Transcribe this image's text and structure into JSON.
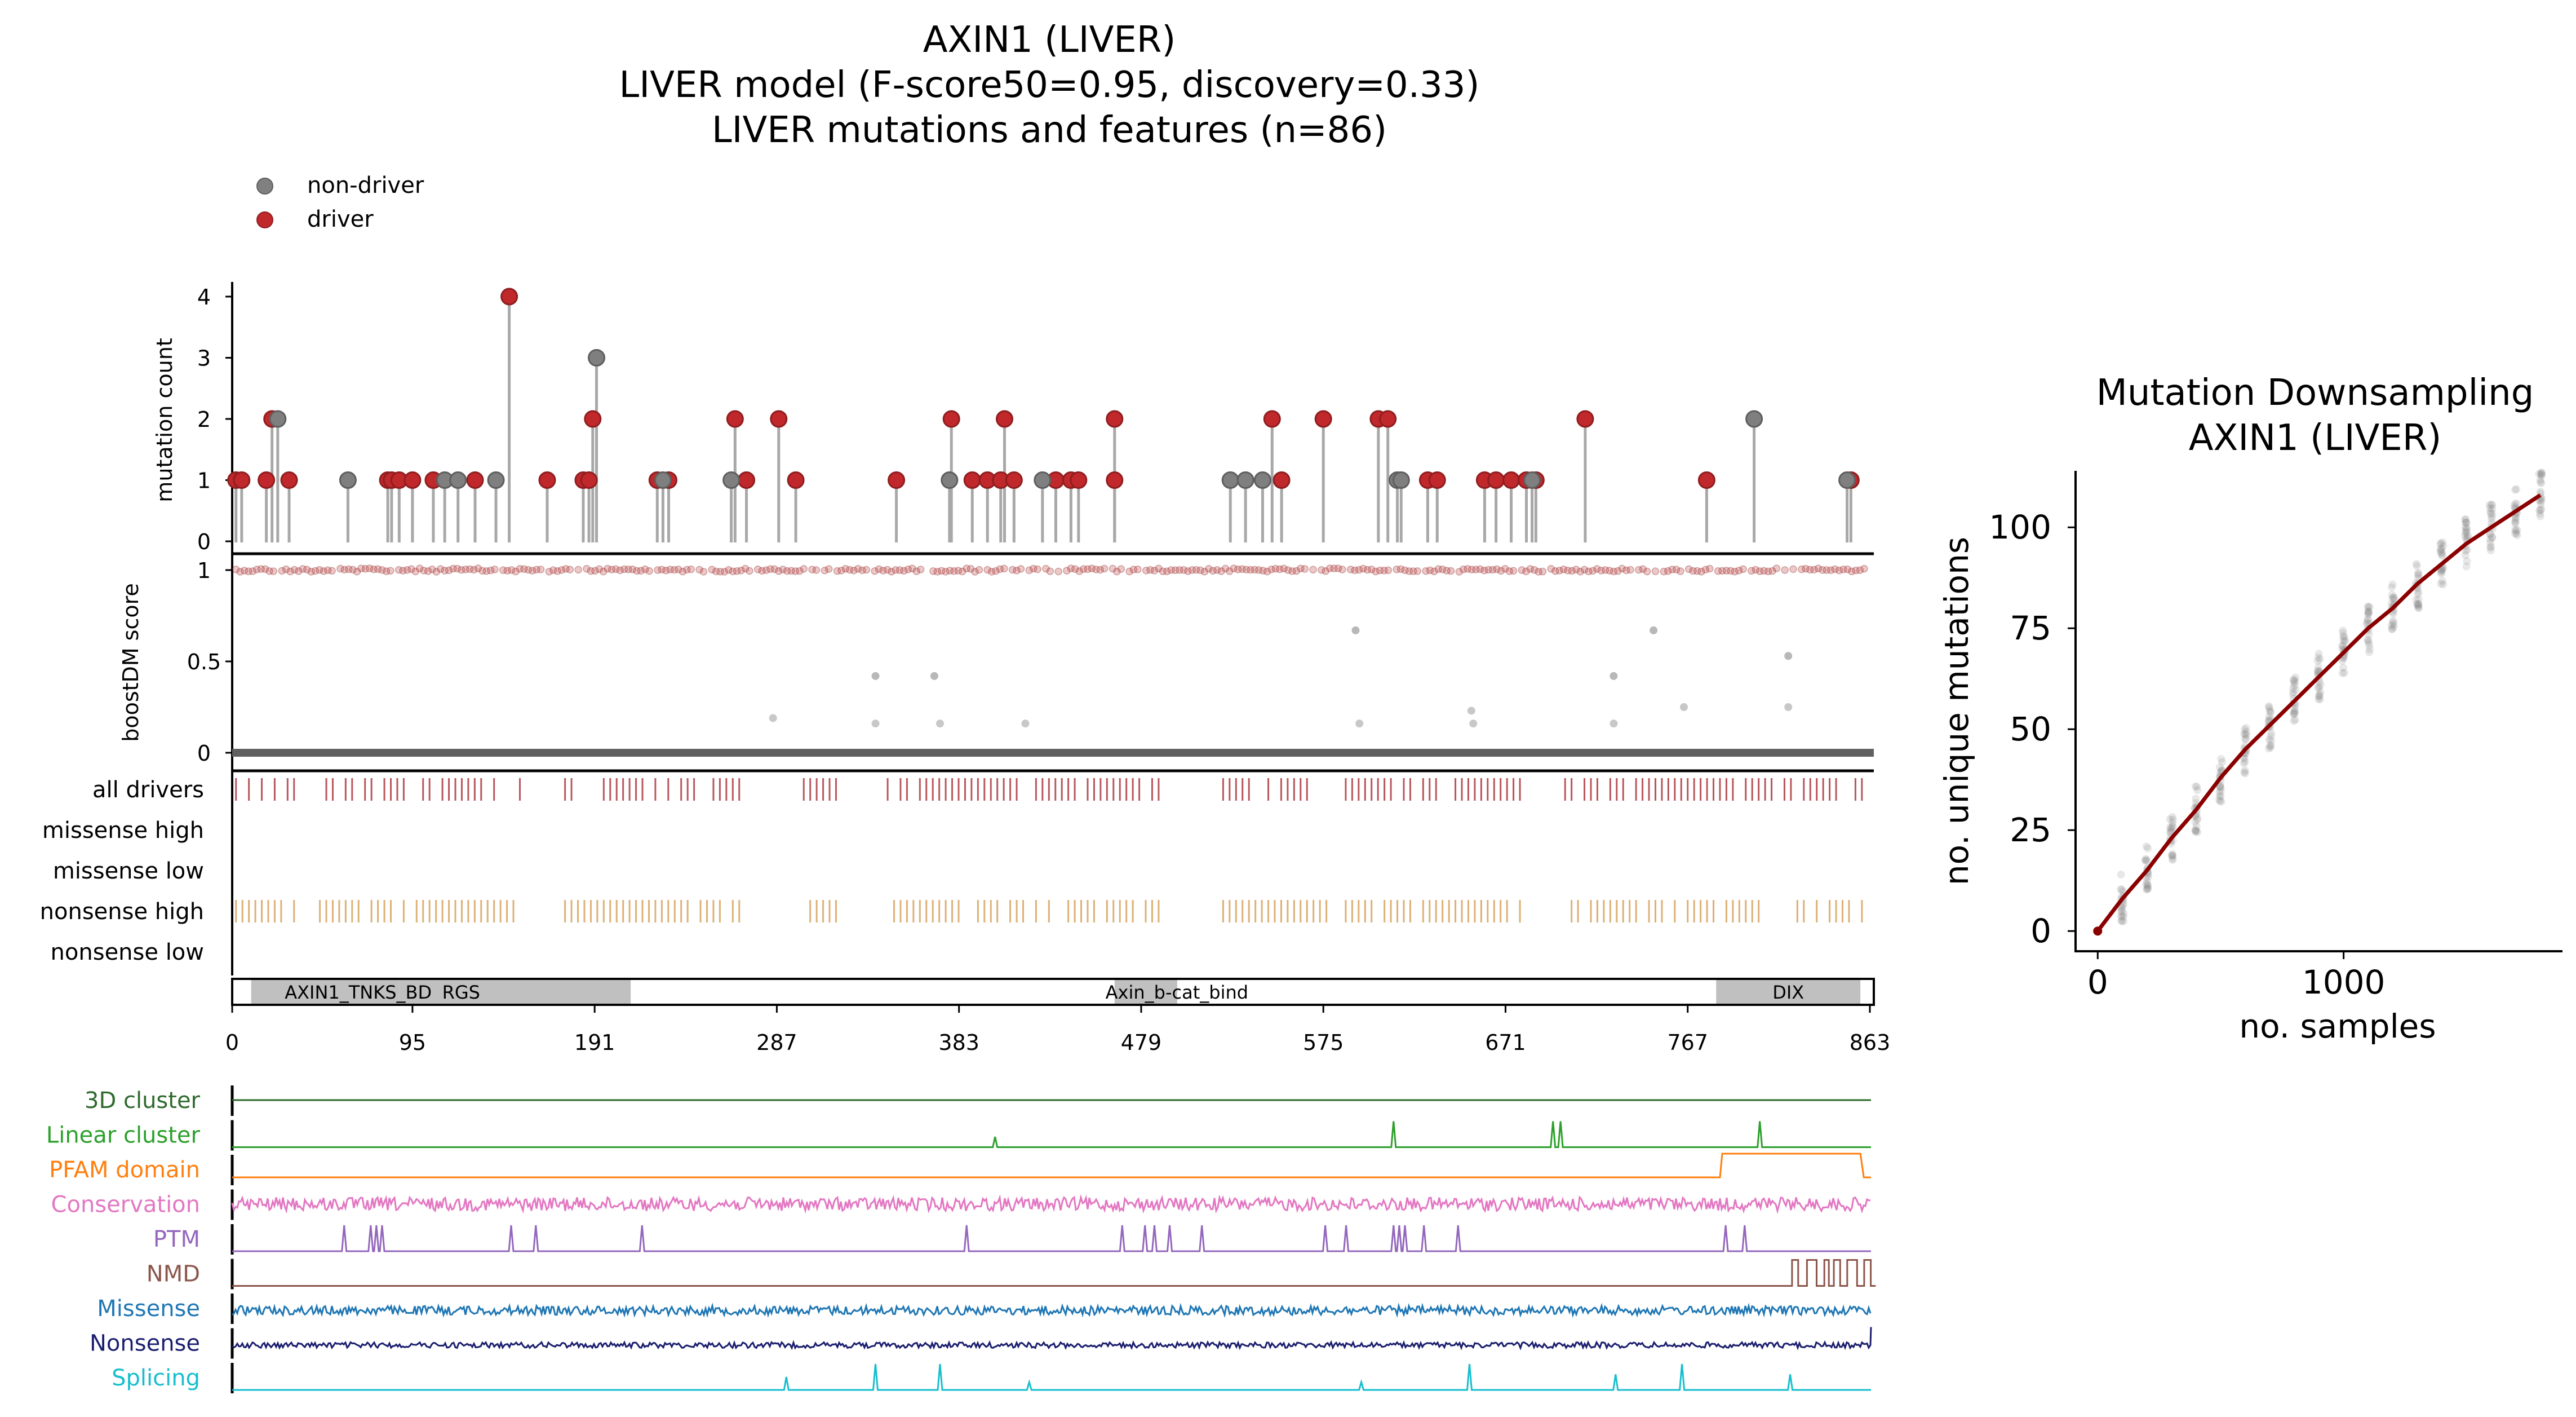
{
  "header": {
    "title_lines": [
      "AXIN1 (LIVER)",
      "LIVER model (F-score50=0.95, discovery=0.33)",
      "LIVER mutations and features (n=86)"
    ]
  },
  "legend": {
    "entries": [
      {
        "label": "non-driver",
        "color": "#808080"
      },
      {
        "label": "driver",
        "color": "#c0282b"
      }
    ],
    "placement": "top-left"
  },
  "colors": {
    "driver": "#c0282b",
    "nondriver": "#7f7f7f",
    "stem": "#a8a8a8",
    "all_drivers_tick": "#b8565c",
    "nonsense_high_tick": "#ddb077",
    "domain_fill": "#c0c0c0",
    "downsampling_line": "#8b0000"
  },
  "chart_data": [
    {
      "id": "lollipop",
      "type": "scatter",
      "ylabel": "mutation count",
      "yticks": [
        0,
        1,
        2,
        3,
        4
      ],
      "ylim": [
        0,
        4.2
      ],
      "xlim": [
        0,
        863
      ],
      "series": [
        {
          "name": "driver",
          "points": [
            [
              2,
              1
            ],
            [
              5,
              1
            ],
            [
              18,
              1
            ],
            [
              21,
              2
            ],
            [
              30,
              1
            ],
            [
              82,
              1
            ],
            [
              84,
              1
            ],
            [
              88,
              1
            ],
            [
              95,
              1
            ],
            [
              106,
              1
            ],
            [
              128,
              1
            ],
            [
              146,
              4
            ],
            [
              166,
              1
            ],
            [
              185,
              1
            ],
            [
              188,
              1
            ],
            [
              190,
              2
            ],
            [
              224,
              1
            ],
            [
              230,
              1
            ],
            [
              265,
              2
            ],
            [
              271,
              1
            ],
            [
              288,
              2
            ],
            [
              297,
              1
            ],
            [
              350,
              1
            ],
            [
              379,
              2
            ],
            [
              390,
              1
            ],
            [
              398,
              1
            ],
            [
              405,
              1
            ],
            [
              407,
              2
            ],
            [
              412,
              1
            ],
            [
              434,
              1
            ],
            [
              442,
              1
            ],
            [
              446,
              1
            ],
            [
              465,
              1
            ],
            [
              465,
              2
            ],
            [
              548,
              2
            ],
            [
              553,
              1
            ],
            [
              575,
              2
            ],
            [
              604,
              2
            ],
            [
              609,
              2
            ],
            [
              630,
              1
            ],
            [
              635,
              1
            ],
            [
              660,
              1
            ],
            [
              666,
              1
            ],
            [
              674,
              1
            ],
            [
              682,
              1
            ],
            [
              687,
              1
            ],
            [
              713,
              2
            ],
            [
              777,
              1
            ],
            [
              853,
              1
            ]
          ]
        },
        {
          "name": "non-driver",
          "points": [
            [
              24,
              2
            ],
            [
              61,
              1
            ],
            [
              112,
              1
            ],
            [
              119,
              1
            ],
            [
              139,
              1
            ],
            [
              192,
              3
            ],
            [
              227,
              1
            ],
            [
              263,
              1
            ],
            [
              378,
              1
            ],
            [
              427,
              1
            ],
            [
              526,
              1
            ],
            [
              534,
              1
            ],
            [
              543,
              1
            ],
            [
              614,
              1
            ],
            [
              616,
              1
            ],
            [
              685,
              1
            ],
            [
              802,
              2
            ],
            [
              851,
              1
            ]
          ]
        }
      ]
    },
    {
      "id": "boostdm",
      "type": "scatter",
      "ylabel": "boostDM score",
      "ytick_labels": [
        "1",
        "0.5",
        "0"
      ],
      "yticks": [
        1,
        0.5,
        0
      ],
      "ylim": [
        0,
        1
      ],
      "xlim": [
        0,
        863
      ],
      "scattered_points": [
        [
          339,
          0.42
        ],
        [
          370,
          0.42
        ],
        [
          285,
          0.19
        ],
        [
          339,
          0.16
        ],
        [
          373,
          0.16
        ],
        [
          418,
          0.16
        ],
        [
          592,
          0.67
        ],
        [
          594,
          0.16
        ],
        [
          653,
          0.23
        ],
        [
          654,
          0.16
        ],
        [
          728,
          0.42
        ],
        [
          749,
          0.67
        ],
        [
          728,
          0.16
        ],
        [
          765,
          0.25
        ],
        [
          820,
          0.53
        ],
        [
          820,
          0.25
        ]
      ]
    },
    {
      "id": "feature_tracks",
      "type": "table",
      "row_labels": [
        "all drivers",
        "missense high",
        "missense low",
        "nonsense high",
        "nonsense low"
      ],
      "xlim": [
        0,
        863
      ],
      "filled_rows": [
        "all drivers",
        "nonsense high"
      ],
      "gaps": [
        [
          35,
          45
        ],
        [
          155,
          175
        ],
        [
          268,
          298
        ],
        [
          320,
          345
        ],
        [
          490,
          520
        ],
        [
          680,
          700
        ]
      ]
    },
    {
      "id": "domains",
      "type": "bar",
      "domains": [
        {
          "name": "AXIN1_TNKS_BD",
          "start": 10,
          "end": 88
        },
        {
          "name": "RGS",
          "start": 88,
          "end": 210
        },
        {
          "name": "Axin_b-cat_bind",
          "start": 465,
          "end": 498
        },
        {
          "name": "DIX",
          "start": 782,
          "end": 858
        }
      ],
      "xticks": [
        0,
        95,
        191,
        287,
        383,
        479,
        575,
        671,
        767,
        863
      ],
      "xlim": [
        0,
        863
      ]
    },
    {
      "id": "feature_signals",
      "type": "line",
      "xlim": [
        0,
        863
      ],
      "tracks": [
        {
          "name": "3D cluster",
          "color": "#2d6a2d",
          "kind": "flat"
        },
        {
          "name": "Linear cluster",
          "color": "#2ca02c",
          "kind": "peaks",
          "peaks": [
            [
              402,
              0.4
            ],
            [
              612,
              1
            ],
            [
              696,
              1
            ],
            [
              700,
              1
            ],
            [
              805,
              1
            ]
          ]
        },
        {
          "name": "PFAM domain",
          "color": "#ff7f0e",
          "kind": "step",
          "start": 784,
          "end": 858
        },
        {
          "name": "Conservation",
          "color": "#e377c2",
          "kind": "noise"
        },
        {
          "name": "PTM",
          "color": "#9467bd",
          "kind": "peaks",
          "peaks": [
            [
              59,
              1
            ],
            [
              73,
              1
            ],
            [
              76,
              1
            ],
            [
              79,
              1
            ],
            [
              147,
              1
            ],
            [
              160,
              1
            ],
            [
              216,
              1
            ],
            [
              387,
              1
            ],
            [
              469,
              1
            ],
            [
              481,
              1
            ],
            [
              486,
              1
            ],
            [
              494,
              1
            ],
            [
              511,
              1
            ],
            [
              576,
              1
            ],
            [
              587,
              1
            ],
            [
              612,
              1
            ],
            [
              615,
              1
            ],
            [
              618,
              1
            ],
            [
              628,
              1
            ],
            [
              646,
              1
            ],
            [
              787,
              1
            ],
            [
              797,
              1
            ]
          ]
        },
        {
          "name": "NMD",
          "color": "#8c564b",
          "kind": "nmd",
          "start": 822,
          "end": 863
        },
        {
          "name": "Missense",
          "color": "#1f77b4",
          "kind": "noise"
        },
        {
          "name": "Nonsense",
          "color": "#1b1f6e",
          "kind": "noise"
        },
        {
          "name": "Splicing",
          "color": "#17becf",
          "kind": "peaks",
          "peaks": [
            [
              292,
              0.5
            ],
            [
              339,
              1
            ],
            [
              373,
              1
            ],
            [
              420,
              0.3
            ],
            [
              595,
              0.3
            ],
            [
              652,
              1
            ],
            [
              729,
              0.6
            ],
            [
              764,
              1
            ],
            [
              821,
              0.6
            ]
          ]
        }
      ]
    },
    {
      "id": "downsampling",
      "type": "line",
      "title": "Mutation Downsampling\nAXIN1 (LIVER)",
      "title_lines": [
        "Mutation Downsampling",
        "AXIN1 (LIVER)"
      ],
      "xlabel": "no. samples",
      "ylabel": "no. unique mutations",
      "xticks": [
        0,
        1000
      ],
      "yticks": [
        0,
        25,
        50,
        75,
        100
      ],
      "xlim": [
        -90,
        1890
      ],
      "ylim": [
        -5,
        114
      ],
      "line": {
        "x": [
          0,
          100,
          200,
          300,
          400,
          500,
          600,
          700,
          800,
          900,
          1000,
          1100,
          1200,
          1300,
          1400,
          1500,
          1600,
          1700,
          1800
        ],
        "y": [
          0,
          8,
          15,
          23,
          30,
          38,
          45,
          51,
          57,
          63,
          69,
          75,
          80,
          86,
          91,
          96,
          100,
          104,
          108
        ]
      }
    }
  ]
}
